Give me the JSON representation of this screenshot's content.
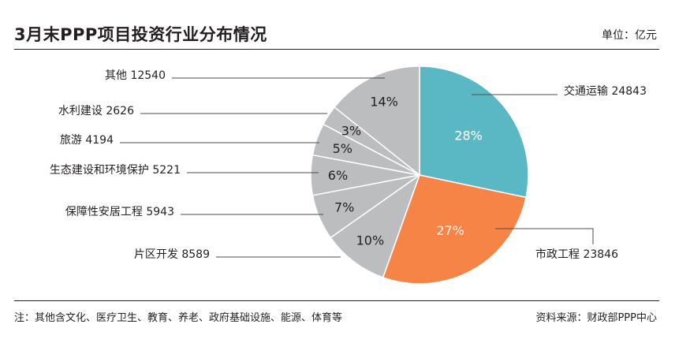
{
  "header": {
    "title": "3月末PPP项目投资行业分布情况",
    "unit": "单位：亿元"
  },
  "footer": {
    "note": "注：其他含文化、医疗卫生、教育、养老、政府基础设施、能源、体育等",
    "source": "资料来源：财政部PPP中心"
  },
  "colors": {
    "transport": "#59b8c3",
    "municipal": "#f68446",
    "other": "#bcbdbf",
    "slice_border": "#ffffff",
    "leader": "#4d4d4d",
    "text": "#231f20"
  },
  "chart_data": {
    "type": "pie",
    "title": "3月末PPP项目投资行业分布情况",
    "unit": "亿元",
    "start": "12 o'clock",
    "direction": "clockwise",
    "slices": [
      {
        "label": "交通运输",
        "value": 24843,
        "percent": "28%",
        "color_key": "transport",
        "side": "right"
      },
      {
        "label": "市政工程",
        "value": 23846,
        "percent": "27%",
        "color_key": "municipal",
        "side": "right"
      },
      {
        "label": "片区开发",
        "value": 8589,
        "percent": "10%",
        "color_key": "other",
        "side": "left"
      },
      {
        "label": "保障性安居工程",
        "value": 5943,
        "percent": "7%",
        "color_key": "other",
        "side": "left"
      },
      {
        "label": "生态建设和环境保护",
        "value": 5221,
        "percent": "6%",
        "color_key": "other",
        "side": "left"
      },
      {
        "label": "旅游",
        "value": 4194,
        "percent": "5%",
        "color_key": "other",
        "side": "left"
      },
      {
        "label": "水利建设",
        "value": 2626,
        "percent": "3%",
        "color_key": "other",
        "side": "left"
      },
      {
        "label": "其他",
        "value": 12540,
        "percent": "14%",
        "color_key": "other",
        "side": "left"
      }
    ]
  }
}
